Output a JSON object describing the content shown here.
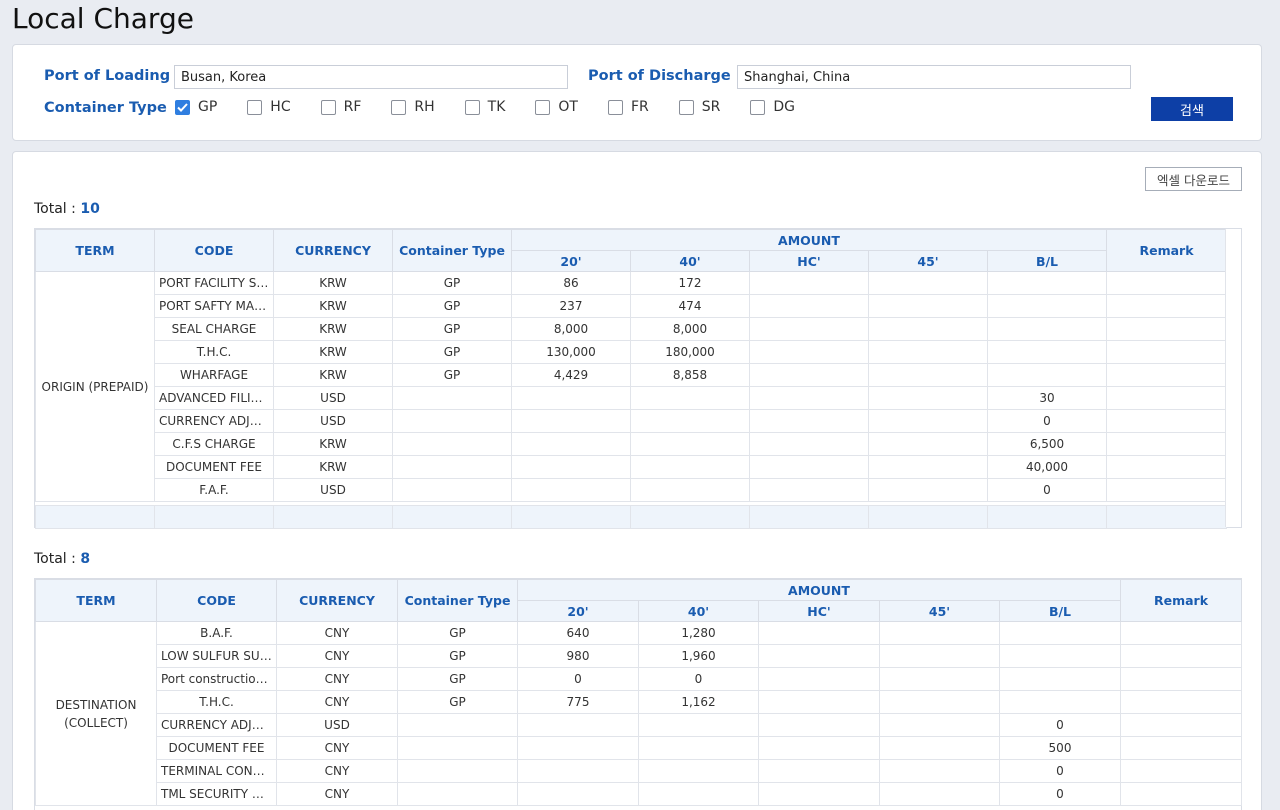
{
  "page": {
    "title": "Local Charge"
  },
  "search": {
    "pol_label": "Port of Loading",
    "pol_value": "Busan, Korea",
    "pod_label": "Port of Discharge",
    "pod_value": "Shanghai, China",
    "container_type_label": "Container Type",
    "container_types": [
      {
        "code": "GP",
        "checked": true
      },
      {
        "code": "HC",
        "checked": false
      },
      {
        "code": "RF",
        "checked": false
      },
      {
        "code": "RH",
        "checked": false
      },
      {
        "code": "TK",
        "checked": false
      },
      {
        "code": "OT",
        "checked": false
      },
      {
        "code": "FR",
        "checked": false
      },
      {
        "code": "SR",
        "checked": false
      },
      {
        "code": "DG",
        "checked": false
      }
    ],
    "search_button": "검색",
    "accent_color": "#1a5cb0",
    "button_color": "#0d3fa6",
    "check_color": "#2f7ee0"
  },
  "results": {
    "excel_button": "엑셀 다운로드",
    "headers": {
      "term": "TERM",
      "code": "CODE",
      "currency": "CURRENCY",
      "container_type": "Container Type",
      "amount": "AMOUNT",
      "c20": "20'",
      "c40": "40'",
      "hc": "HC'",
      "c45": "45'",
      "bl": "B/L",
      "remark": "Remark"
    },
    "origin": {
      "total_label": "Total : ",
      "total": "10",
      "term": "ORIGIN (PREPAID)",
      "rows": [
        {
          "code": "PORT FACILITY SE...",
          "currency": "KRW",
          "type": "GP",
          "c20": "86",
          "c40": "172",
          "hc": "",
          "c45": "",
          "bl": "",
          "remark": ""
        },
        {
          "code": "PORT SAFTY MAIN...",
          "currency": "KRW",
          "type": "GP",
          "c20": "237",
          "c40": "474",
          "hc": "",
          "c45": "",
          "bl": "",
          "remark": ""
        },
        {
          "code": "SEAL CHARGE",
          "currency": "KRW",
          "type": "GP",
          "c20": "8,000",
          "c40": "8,000",
          "hc": "",
          "c45": "",
          "bl": "",
          "remark": ""
        },
        {
          "code": "T.H.C.",
          "currency": "KRW",
          "type": "GP",
          "c20": "130,000",
          "c40": "180,000",
          "hc": "",
          "c45": "",
          "bl": "",
          "remark": ""
        },
        {
          "code": "WHARFAGE",
          "currency": "KRW",
          "type": "GP",
          "c20": "4,429",
          "c40": "8,858",
          "hc": "",
          "c45": "",
          "bl": "",
          "remark": ""
        },
        {
          "code": "ADVANCED FILING...",
          "currency": "USD",
          "type": "",
          "c20": "",
          "c40": "",
          "hc": "",
          "c45": "",
          "bl": "30",
          "remark": ""
        },
        {
          "code": "CURRENCY ADJUS...",
          "currency": "USD",
          "type": "",
          "c20": "",
          "c40": "",
          "hc": "",
          "c45": "",
          "bl": "0",
          "remark": ""
        },
        {
          "code": "C.F.S CHARGE",
          "currency": "KRW",
          "type": "",
          "c20": "",
          "c40": "",
          "hc": "",
          "c45": "",
          "bl": "6,500",
          "remark": ""
        },
        {
          "code": "DOCUMENT FEE",
          "currency": "KRW",
          "type": "",
          "c20": "",
          "c40": "",
          "hc": "",
          "c45": "",
          "bl": "40,000",
          "remark": ""
        },
        {
          "code": "F.A.F.",
          "currency": "USD",
          "type": "",
          "c20": "",
          "c40": "",
          "hc": "",
          "c45": "",
          "bl": "0",
          "remark": ""
        }
      ]
    },
    "destination": {
      "total_label": "Total : ",
      "total": "8",
      "term_line1": "DESTINATION",
      "term_line2": "(COLLECT)",
      "rows": [
        {
          "code": "B.A.F.",
          "currency": "CNY",
          "type": "GP",
          "c20": "640",
          "c40": "1,280",
          "hc": "",
          "c45": "",
          "bl": "",
          "remark": ""
        },
        {
          "code": "LOW SULFUR SUR...",
          "currency": "CNY",
          "type": "GP",
          "c20": "980",
          "c40": "1,960",
          "hc": "",
          "c45": "",
          "bl": "",
          "remark": ""
        },
        {
          "code": "Port construction fee",
          "currency": "CNY",
          "type": "GP",
          "c20": "0",
          "c40": "0",
          "hc": "",
          "c45": "",
          "bl": "",
          "remark": ""
        },
        {
          "code": "T.H.C.",
          "currency": "CNY",
          "type": "GP",
          "c20": "775",
          "c40": "1,162",
          "hc": "",
          "c45": "",
          "bl": "",
          "remark": ""
        },
        {
          "code": "CURRENCY ADJUS...",
          "currency": "USD",
          "type": "",
          "c20": "",
          "c40": "",
          "hc": "",
          "c45": "",
          "bl": "0",
          "remark": ""
        },
        {
          "code": "DOCUMENT FEE",
          "currency": "CNY",
          "type": "",
          "c20": "",
          "c40": "",
          "hc": "",
          "c45": "",
          "bl": "500",
          "remark": ""
        },
        {
          "code": "TERMINAL CONST...",
          "currency": "CNY",
          "type": "",
          "c20": "",
          "c40": "",
          "hc": "",
          "c45": "",
          "bl": "0",
          "remark": ""
        },
        {
          "code": "TML SECURITY CH...",
          "currency": "CNY",
          "type": "",
          "c20": "",
          "c40": "",
          "hc": "",
          "c45": "",
          "bl": "0",
          "remark": ""
        }
      ]
    }
  }
}
